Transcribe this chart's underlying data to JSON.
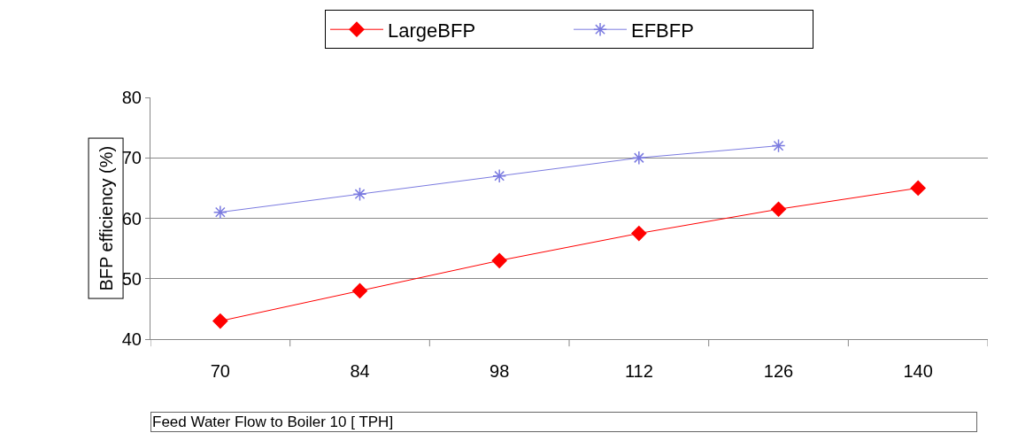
{
  "chart_data": {
    "type": "line",
    "xlabel": "Feed Water Flow to Boiler 10 [ TPH]",
    "ylabel": "BFP efficiency (%)",
    "categories": [
      "70",
      "84",
      "98",
      "112",
      "126",
      "140"
    ],
    "series": [
      {
        "name": "LargeBFP",
        "color": "#ff0000",
        "values": [
          43,
          48,
          53,
          57.5,
          61.5,
          65
        ],
        "marker": "diamond"
      },
      {
        "name": "EFBFP",
        "color": "#7b7be0",
        "values": [
          61,
          64,
          67,
          70,
          72,
          null
        ],
        "marker": "cross"
      }
    ],
    "ylim": [
      40,
      80
    ],
    "yticks": [
      40,
      50,
      60,
      70,
      80
    ],
    "grid": "y",
    "legend": "top",
    "line_style": "solid"
  }
}
